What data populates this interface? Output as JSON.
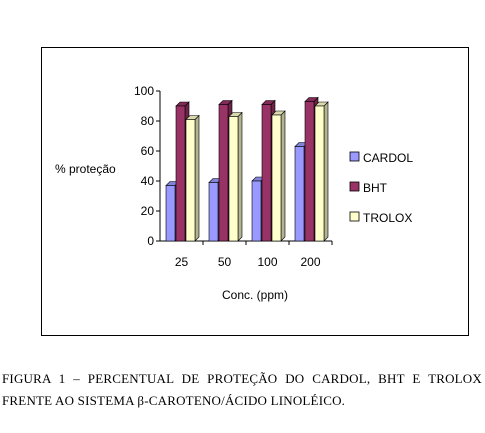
{
  "chart_data": {
    "type": "bar",
    "style": "3d",
    "categories": [
      "25",
      "50",
      "100",
      "200"
    ],
    "series": [
      {
        "name": "CARDOL",
        "values": [
          37,
          39,
          40,
          63
        ],
        "color": "#9999ff"
      },
      {
        "name": "BHT",
        "values": [
          90,
          91,
          91,
          93
        ],
        "color": "#993366"
      },
      {
        "name": "TROLOX",
        "values": [
          81,
          83,
          84,
          90
        ],
        "color": "#ffffcc"
      }
    ],
    "title": "",
    "xlabel": "Conc. (ppm)",
    "ylabel": "% proteção",
    "ylim": [
      0,
      100
    ],
    "yticks": [
      0,
      20,
      40,
      60,
      80,
      100
    ],
    "grid": false,
    "legend_position": "right"
  },
  "caption": {
    "line1": "FIGURA 1 – PERCENTUAL DE PROTEÇÃO DO CARDOL, BHT E TROLOX",
    "line2": "FRENTE AO SISTEMA β-CAROTENO/ÁCIDO LINOLÉICO."
  }
}
